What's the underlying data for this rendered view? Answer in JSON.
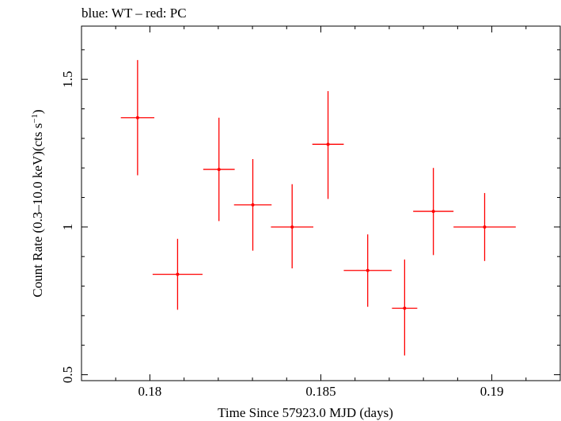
{
  "chart_data": {
    "type": "scatter",
    "title": "blue: WT – red: PC",
    "xlabel": "Time Since 57923.0 MJD (days)",
    "ylabel_main": "Count Rate (0.3–10.0 keV)(cts s",
    "ylabel_sup": "−1",
    "ylabel_close": ")",
    "xlim": [
      0.178,
      0.192
    ],
    "ylim": [
      0.48,
      1.68
    ],
    "x_ticks": [
      {
        "value": 0.18,
        "label": "0.18"
      },
      {
        "value": 0.185,
        "label": "0.185"
      },
      {
        "value": 0.19,
        "label": "0.19"
      }
    ],
    "y_ticks": [
      {
        "value": 0.5,
        "label": "0.5"
      },
      {
        "value": 1.0,
        "label": "1"
      },
      {
        "value": 1.5,
        "label": "1.5"
      }
    ],
    "grid": false,
    "series": [
      {
        "color": "#ff0000",
        "points": [
          {
            "x": 0.17964,
            "xerr": 0.00049,
            "y": 1.37,
            "ylo": 1.175,
            "yhi": 1.565
          },
          {
            "x": 0.18081,
            "xerr": 0.00073,
            "y": 0.84,
            "ylo": 0.72,
            "yhi": 0.96
          },
          {
            "x": 0.18202,
            "xerr": 0.00046,
            "y": 1.195,
            "ylo": 1.02,
            "yhi": 1.37
          },
          {
            "x": 0.18301,
            "xerr": 0.00055,
            "y": 1.075,
            "ylo": 0.92,
            "yhi": 1.23
          },
          {
            "x": 0.18416,
            "xerr": 0.00062,
            "y": 1.0,
            "ylo": 0.86,
            "yhi": 1.145
          },
          {
            "x": 0.18521,
            "xerr": 0.00046,
            "y": 1.28,
            "ylo": 1.095,
            "yhi": 1.46
          },
          {
            "x": 0.18637,
            "xerr": 0.0007,
            "y": 0.853,
            "ylo": 0.73,
            "yhi": 0.975
          },
          {
            "x": 0.18745,
            "xerr": 0.00037,
            "y": 0.725,
            "ylo": 0.565,
            "yhi": 0.89
          },
          {
            "x": 0.18829,
            "xerr": 0.00059,
            "y": 1.053,
            "ylo": 0.905,
            "yhi": 1.2
          },
          {
            "x": 0.18979,
            "xerr": 0.00091,
            "y": 1.0,
            "ylo": 0.885,
            "yhi": 1.115
          }
        ]
      }
    ]
  }
}
